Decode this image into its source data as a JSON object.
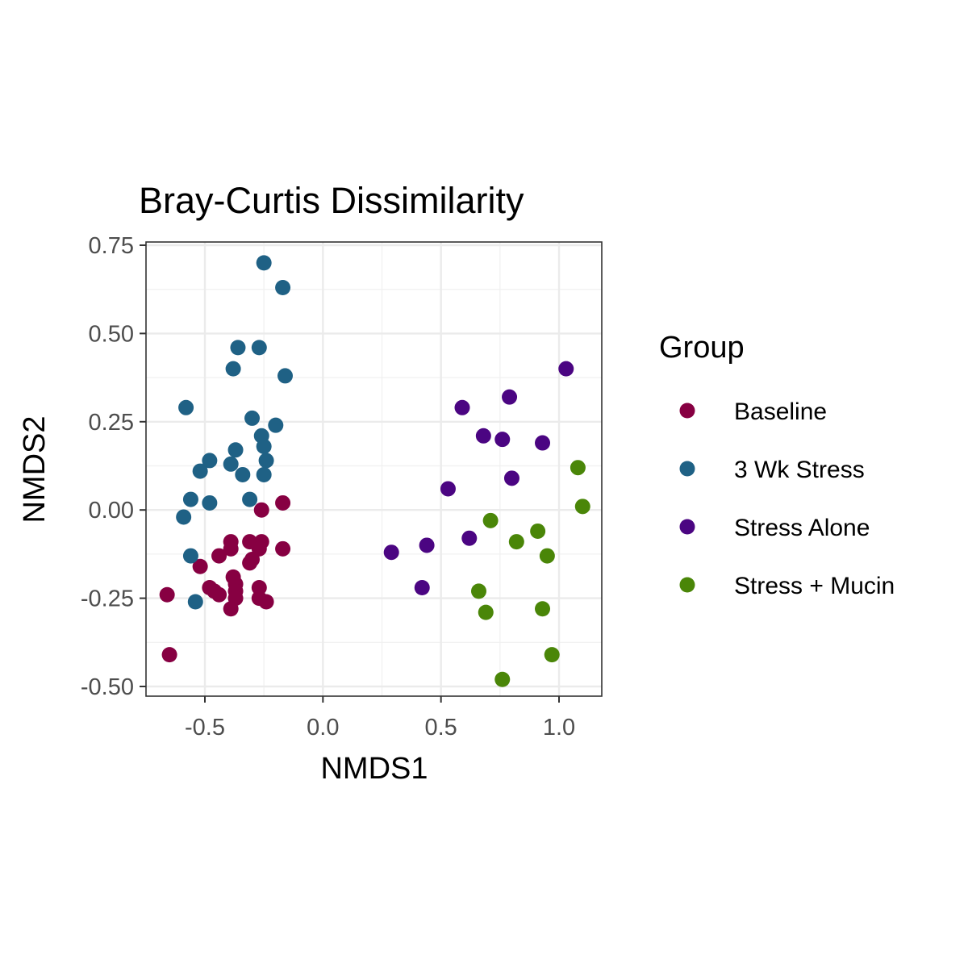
{
  "chart_data": {
    "type": "scatter",
    "title": "Bray-Curtis Dissimilarity",
    "xlabel": "NMDS1",
    "ylabel": "NMDS2",
    "xlim": [
      -0.75,
      1.18
    ],
    "ylim": [
      -0.53,
      0.76
    ],
    "x_ticks": [
      -0.5,
      0.0,
      0.5,
      1.0
    ],
    "x_tick_labels": [
      "-0.5",
      "0.0",
      "0.5",
      "1.0"
    ],
    "y_ticks": [
      0.75,
      0.5,
      0.25,
      0.0,
      -0.25,
      -0.5
    ],
    "y_tick_labels": [
      "0.75",
      "0.50",
      "0.25",
      "0.00",
      "-0.25",
      "-0.50"
    ],
    "grid": true,
    "legend": {
      "title": "Group",
      "placement": "right"
    },
    "series": [
      {
        "name": "Baseline",
        "color": "#870042",
        "points": [
          [
            -0.26,
            0.0
          ],
          [
            -0.17,
            0.02
          ],
          [
            -0.39,
            -0.09
          ],
          [
            -0.31,
            -0.09
          ],
          [
            -0.26,
            -0.09
          ],
          [
            -0.39,
            -0.11
          ],
          [
            -0.27,
            -0.11
          ],
          [
            -0.17,
            -0.11
          ],
          [
            -0.44,
            -0.13
          ],
          [
            -0.3,
            -0.14
          ],
          [
            -0.31,
            -0.15
          ],
          [
            -0.52,
            -0.16
          ],
          [
            -0.38,
            -0.19
          ],
          [
            -0.37,
            -0.21
          ],
          [
            -0.48,
            -0.22
          ],
          [
            -0.46,
            -0.23
          ],
          [
            -0.37,
            -0.23
          ],
          [
            -0.27,
            -0.22
          ],
          [
            -0.44,
            -0.24
          ],
          [
            -0.37,
            -0.25
          ],
          [
            -0.27,
            -0.25
          ],
          [
            -0.24,
            -0.26
          ],
          [
            -0.39,
            -0.28
          ],
          [
            -0.66,
            -0.24
          ],
          [
            -0.65,
            -0.41
          ]
        ]
      },
      {
        "name": "3 Wk Stress",
        "color": "#1f6185",
        "points": [
          [
            -0.25,
            0.7
          ],
          [
            -0.17,
            0.63
          ],
          [
            -0.36,
            0.46
          ],
          [
            -0.27,
            0.46
          ],
          [
            -0.38,
            0.4
          ],
          [
            -0.16,
            0.38
          ],
          [
            -0.58,
            0.29
          ],
          [
            -0.3,
            0.26
          ],
          [
            -0.2,
            0.24
          ],
          [
            -0.26,
            0.21
          ],
          [
            -0.37,
            0.17
          ],
          [
            -0.25,
            0.18
          ],
          [
            -0.24,
            0.14
          ],
          [
            -0.48,
            0.14
          ],
          [
            -0.39,
            0.13
          ],
          [
            -0.52,
            0.11
          ],
          [
            -0.34,
            0.1
          ],
          [
            -0.25,
            0.1
          ],
          [
            -0.56,
            0.03
          ],
          [
            -0.48,
            0.02
          ],
          [
            -0.31,
            0.03
          ],
          [
            -0.59,
            -0.02
          ],
          [
            -0.56,
            -0.13
          ],
          [
            -0.54,
            -0.26
          ]
        ]
      },
      {
        "name": "Stress Alone",
        "color": "#4b0582",
        "points": [
          [
            1.03,
            0.4
          ],
          [
            0.79,
            0.32
          ],
          [
            0.59,
            0.29
          ],
          [
            0.68,
            0.21
          ],
          [
            0.76,
            0.2
          ],
          [
            0.93,
            0.19
          ],
          [
            0.8,
            0.09
          ],
          [
            0.53,
            0.06
          ],
          [
            0.62,
            -0.08
          ],
          [
            0.44,
            -0.1
          ],
          [
            0.29,
            -0.12
          ],
          [
            0.42,
            -0.22
          ]
        ]
      },
      {
        "name": "Stress + Mucin",
        "color": "#4a8608",
        "points": [
          [
            1.08,
            0.12
          ],
          [
            1.1,
            0.01
          ],
          [
            0.71,
            -0.03
          ],
          [
            0.91,
            -0.06
          ],
          [
            0.82,
            -0.09
          ],
          [
            0.95,
            -0.13
          ],
          [
            0.66,
            -0.23
          ],
          [
            0.69,
            -0.29
          ],
          [
            0.93,
            -0.28
          ],
          [
            0.97,
            -0.41
          ],
          [
            0.76,
            -0.48
          ]
        ]
      }
    ]
  }
}
